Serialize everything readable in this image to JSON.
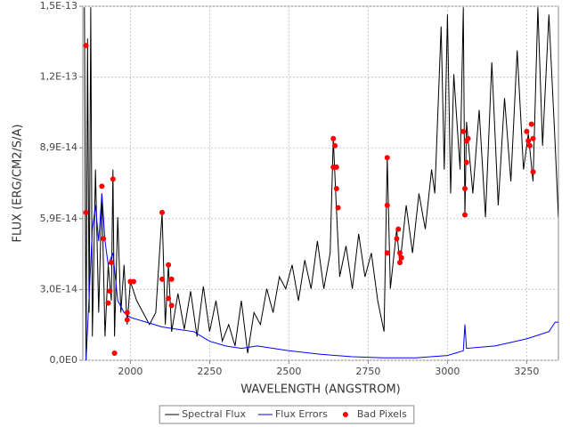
{
  "chart_data": {
    "type": "line",
    "x_label": "WAVELENGTH (ANGSTROM)",
    "y_label": "FLUX (ERG/CM2/S/A)",
    "xlim": [
      1850,
      3350
    ],
    "ylim": [
      0,
      1.485e-13
    ],
    "xticks": [
      2000,
      2250,
      2500,
      2750,
      3000,
      3250
    ],
    "yticks": [
      {
        "value": 0,
        "label": "0,0E0"
      },
      {
        "value": 2.97e-14,
        "label": "3,0E-14"
      },
      {
        "value": 5.94e-14,
        "label": "5,9E-14"
      },
      {
        "value": 8.91e-14,
        "label": "8,9E-14"
      },
      {
        "value": 1.188e-13,
        "label": "1,2E-13"
      },
      {
        "value": 1.485e-13,
        "label": "1,5E-13"
      }
    ],
    "grid": true,
    "legend": "bottom",
    "series": [
      {
        "name": "Spectral Flux",
        "color": "#000000",
        "type": "line",
        "x": [
          1855,
          1860,
          1865,
          1870,
          1875,
          1880,
          1890,
          1900,
          1910,
          1920,
          1930,
          1940,
          1945,
          1950,
          1960,
          1970,
          1980,
          1990,
          2000,
          2020,
          2040,
          2060,
          2080,
          2100,
          2110,
          2120,
          2130,
          2150,
          2170,
          2190,
          2210,
          2230,
          2250,
          2270,
          2290,
          2310,
          2330,
          2350,
          2370,
          2390,
          2410,
          2430,
          2450,
          2470,
          2490,
          2510,
          2530,
          2550,
          2570,
          2590,
          2610,
          2630,
          2640,
          2650,
          2660,
          2680,
          2700,
          2720,
          2740,
          2760,
          2780,
          2800,
          2810,
          2820,
          2840,
          2850,
          2870,
          2890,
          2910,
          2930,
          2950,
          2960,
          2980,
          2990,
          3000,
          3010,
          3020,
          3040,
          3050,
          3055,
          3060,
          3080,
          3100,
          3120,
          3140,
          3160,
          3180,
          3200,
          3220,
          3240,
          3255,
          3270,
          3285,
          3300,
          3320,
          3340,
          3350
        ],
        "values": [
          1.48e-13,
          0,
          1.35e-13,
          2e-14,
          1.48e-13,
          1e-14,
          8e-14,
          2e-14,
          7e-14,
          1e-14,
          4e-14,
          2.5e-14,
          8e-14,
          1e-14,
          6e-14,
          2e-14,
          4e-14,
          1.5e-14,
          3.3e-14,
          2.5e-14,
          2e-14,
          1.5e-14,
          2e-14,
          6.2e-14,
          1.5e-14,
          4e-14,
          1.2e-14,
          2.8e-14,
          1.3e-14,
          2.9e-14,
          1e-14,
          3.1e-14,
          1.2e-14,
          2.5e-14,
          8e-15,
          1.5e-14,
          6e-15,
          2.5e-14,
          3e-15,
          2e-14,
          1.5e-14,
          3e-14,
          2e-14,
          3.5e-14,
          3e-14,
          4e-14,
          2.5e-14,
          4.2e-14,
          3e-14,
          5e-14,
          3e-14,
          4.5e-14,
          9.3e-14,
          6.3e-14,
          3.5e-14,
          4.8e-14,
          3e-14,
          5.3e-14,
          3.5e-14,
          4.5e-14,
          2.5e-14,
          1.2e-14,
          8.5e-14,
          3e-14,
          5.5e-14,
          4e-14,
          6.5e-14,
          4.5e-14,
          7e-14,
          5.5e-14,
          8e-14,
          7e-14,
          1.4e-13,
          8e-14,
          1.45e-13,
          7e-14,
          1.2e-13,
          8e-14,
          1.48e-13,
          6e-14,
          1e-13,
          7e-14,
          1.05e-13,
          6e-14,
          1.25e-13,
          6.5e-14,
          1.1e-13,
          7.5e-14,
          1.3e-13,
          8e-14,
          9.5e-14,
          7.5e-14,
          1.48e-13,
          9e-14,
          1.45e-13,
          9e-14,
          6e-14
        ]
      },
      {
        "name": "Flux Errors",
        "color": "#0000ff",
        "type": "line",
        "x": [
          1860,
          1880,
          1890,
          1900,
          1910,
          1920,
          1930,
          1945,
          1960,
          1980,
          2000,
          2050,
          2100,
          2150,
          2200,
          2250,
          2300,
          2350,
          2400,
          2500,
          2600,
          2700,
          2800,
          2900,
          3000,
          3050,
          3055,
          3060,
          3150,
          3250,
          3320,
          3340,
          3350
        ],
        "values": [
          0,
          5.5e-14,
          6.5e-14,
          5e-14,
          7e-14,
          5e-14,
          4e-14,
          4.5e-14,
          2.5e-14,
          2e-14,
          1.8e-14,
          1.6e-14,
          1.4e-14,
          1.3e-14,
          1.2e-14,
          8e-15,
          6e-15,
          5e-15,
          6e-15,
          4e-15,
          2.5e-15,
          1.5e-15,
          1e-15,
          1e-15,
          2e-15,
          4e-15,
          1.5e-14,
          5e-15,
          6e-15,
          9e-15,
          1.2e-14,
          1.6e-14,
          1.6e-14
        ]
      },
      {
        "name": "Bad Pixels",
        "color": "#ff0000",
        "type": "scatter",
        "x": [
          1860,
          1860,
          1910,
          1915,
          1930,
          1935,
          1945,
          1940,
          1950,
          1990,
          1990,
          2000,
          2010,
          2100,
          2100,
          2120,
          2120,
          2130,
          2130,
          2640,
          2640,
          2650,
          2650,
          2655,
          2645,
          2810,
          2810,
          2810,
          2840,
          2845,
          2850,
          2850,
          2855,
          3050,
          3055,
          3055,
          3060,
          3060,
          3065,
          3250,
          3255,
          3260,
          3265,
          3270,
          3270
        ],
        "values": [
          1.32e-13,
          6.2e-14,
          7.3e-14,
          5.1e-14,
          2.4e-14,
          2.9e-14,
          7.6e-14,
          4.1e-14,
          3e-15,
          2e-14,
          1.7e-14,
          3.3e-14,
          3.3e-14,
          6.2e-14,
          3.4e-14,
          2.6e-14,
          4e-14,
          3.4e-14,
          2.3e-14,
          9.3e-14,
          8.1e-14,
          8.1e-14,
          7.2e-14,
          6.4e-14,
          9e-14,
          8.5e-14,
          6.5e-14,
          4.5e-14,
          5.1e-14,
          5.5e-14,
          4.5e-14,
          4.1e-14,
          4.3e-14,
          9.6e-14,
          7.2e-14,
          6.1e-14,
          8.3e-14,
          9.2e-14,
          9.3e-14,
          9.6e-14,
          9.2e-14,
          9e-14,
          9.9e-14,
          9.3e-14,
          7.9e-14
        ]
      }
    ]
  }
}
